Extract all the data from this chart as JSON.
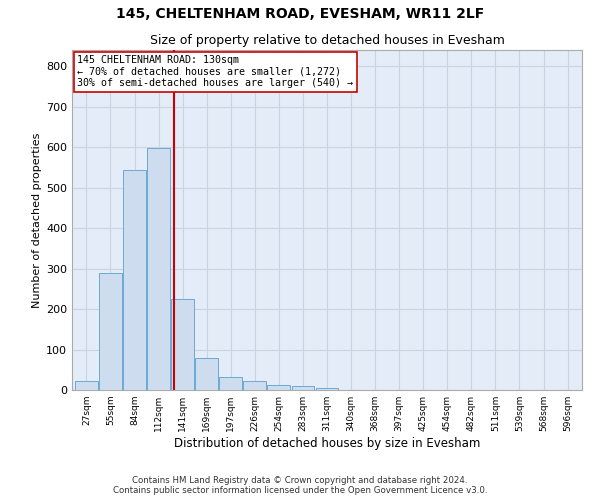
{
  "title1": "145, CHELTENHAM ROAD, EVESHAM, WR11 2LF",
  "title2": "Size of property relative to detached houses in Evesham",
  "xlabel": "Distribution of detached houses by size in Evesham",
  "ylabel": "Number of detached properties",
  "bin_labels": [
    "27sqm",
    "55sqm",
    "84sqm",
    "112sqm",
    "141sqm",
    "169sqm",
    "197sqm",
    "226sqm",
    "254sqm",
    "283sqm",
    "311sqm",
    "340sqm",
    "368sqm",
    "397sqm",
    "425sqm",
    "454sqm",
    "482sqm",
    "511sqm",
    "539sqm",
    "568sqm",
    "596sqm"
  ],
  "bar_heights": [
    22,
    288,
    543,
    597,
    224,
    79,
    32,
    23,
    12,
    9,
    6,
    0,
    0,
    0,
    0,
    0,
    0,
    0,
    0,
    0,
    0
  ],
  "bar_color": "#cddcee",
  "bar_edge_color": "#6aaad4",
  "grid_color": "#c8d4e6",
  "background_color": "#e4ecf7",
  "vline_color": "#cc0000",
  "annotation_text": "145 CHELTENHAM ROAD: 130sqm\n← 70% of detached houses are smaller (1,272)\n30% of semi-detached houses are larger (540) →",
  "annotation_box_color": "#ffffff",
  "annotation_box_edge": "#cc0000",
  "ylim": [
    0,
    840
  ],
  "yticks": [
    0,
    100,
    200,
    300,
    400,
    500,
    600,
    700,
    800
  ],
  "footer_text": "Contains HM Land Registry data © Crown copyright and database right 2024.\nContains public sector information licensed under the Open Government Licence v3.0."
}
